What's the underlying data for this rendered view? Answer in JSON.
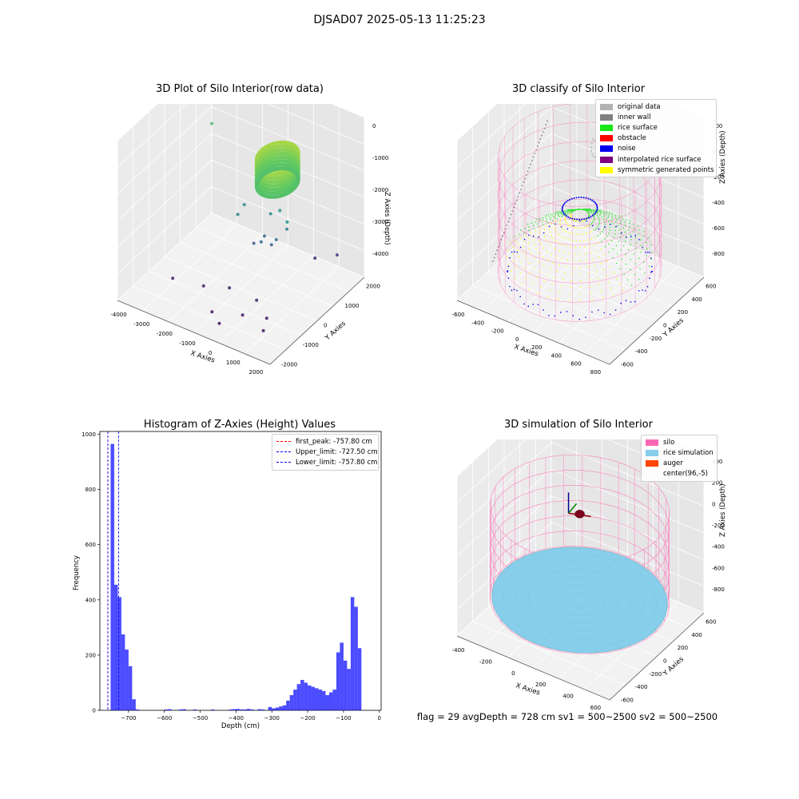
{
  "figure": {
    "suptitle": "DJSAD07 2025-05-13 11:25:23",
    "status_line": "flag = 29  avgDepth = 728 cm  sv1 = 500~2500  sv2 = 500~2500"
  },
  "chart_data": [
    {
      "id": "raw",
      "type": "scatter",
      "projection": "3d",
      "title": "3D Plot of Silo Interior(row data)",
      "xlabel": "X Axies",
      "ylabel": "Y Axies",
      "zlabel": "Z Axies (Depth)",
      "xticks": [
        "-4000",
        "-3000",
        "-2000",
        "-1000",
        "0",
        "1000",
        "2000"
      ],
      "yticks": [
        "-2000",
        "-1000",
        "0",
        "1000",
        "2000"
      ],
      "zticks": [
        "0",
        "-1000",
        "-2000",
        "-3000",
        "-4000"
      ],
      "xlim": [
        -4500,
        2300
      ],
      "ylim": [
        -2500,
        2300
      ],
      "zlim": [
        -4600,
        300
      ],
      "colormap": "viridis",
      "grid": true,
      "points": [
        {
          "x": -3800,
          "y": 1500,
          "z": -1200
        },
        {
          "x": -3000,
          "y": -1400,
          "z": -4100
        },
        {
          "x": -1800,
          "y": -1200,
          "z": -4100
        },
        {
          "x": -1000,
          "y": -800,
          "z": -4150
        },
        {
          "x": -900,
          "y": -1800,
          "z": -4300
        },
        {
          "x": -400,
          "y": -2000,
          "z": -4400
        },
        {
          "x": 200,
          "y": -1500,
          "z": -4250
        },
        {
          "x": 300,
          "y": -900,
          "z": -4100
        },
        {
          "x": 1100,
          "y": -1300,
          "z": -4200
        },
        {
          "x": 1300,
          "y": -1700,
          "z": -4300
        },
        {
          "x": 800,
          "y": 1500,
          "z": -4000
        },
        {
          "x": 1700,
          "y": 1600,
          "z": -3700
        },
        {
          "x": -1500,
          "y": 200,
          "z": -2600
        },
        {
          "x": -1300,
          "y": 300,
          "z": -2300
        },
        {
          "x": -700,
          "y": 100,
          "z": -3200
        },
        {
          "x": -400,
          "y": 300,
          "z": -3000
        },
        {
          "x": -200,
          "y": -100,
          "z": -2900
        },
        {
          "x": 0,
          "y": 200,
          "z": -3100
        },
        {
          "x": 300,
          "y": 100,
          "z": -2800
        },
        {
          "x": 600,
          "y": 300,
          "z": -2500
        },
        {
          "x": 700,
          "y": 200,
          "z": -2200
        },
        {
          "x": -800,
          "y": 400,
          "z": -1300
        },
        {
          "x": -300,
          "y": 500,
          "z": -2400
        },
        {
          "x": 200,
          "y": 400,
          "z": -2100
        },
        {
          "x": -100,
          "y": 600,
          "z": -1700
        },
        {
          "x": 500,
          "y": 500,
          "z": -1500
        }
      ],
      "ring": {
        "center_x": 180,
        "center_y": 300,
        "radius": 700,
        "depth_top": -400,
        "depth_bottom": -1200
      }
    },
    {
      "id": "classify",
      "type": "scatter",
      "projection": "3d",
      "title": "3D classify of Silo Interior",
      "xlabel": "X Axies",
      "ylabel": "Y Axies",
      "zlabel": "Z Axies (Depth)",
      "xticks": [
        "-600",
        "-400",
        "-200",
        "0",
        "200",
        "400",
        "600",
        "800"
      ],
      "yticks": [
        "-600",
        "-400",
        "-200",
        "0",
        "200",
        "400",
        "600"
      ],
      "zticks": [
        "200",
        "0",
        "-200",
        "-400",
        "-600",
        "-800"
      ],
      "xlim": [
        -700,
        900
      ],
      "ylim": [
        -700,
        700
      ],
      "zlim": [
        -950,
        300
      ],
      "grid": true,
      "legend": [
        {
          "label": "original data",
          "color": "#b3b3b3"
        },
        {
          "label": "inner wall",
          "color": "#808080"
        },
        {
          "label": "rice surface",
          "color": "#19e619"
        },
        {
          "label": "obstacle",
          "color": "#ff0000"
        },
        {
          "label": "noise",
          "color": "#0000ee"
        },
        {
          "label": "interpolated rice surface",
          "color": "#800080"
        },
        {
          "label": "symmetric generated points",
          "color": "#ffff00"
        }
      ],
      "silo": {
        "center_x": 96,
        "center_y": -5,
        "radius": 700,
        "z_top": 100,
        "z_bottom": -800,
        "color": "#ff69b4"
      },
      "surface_depth": -728
    },
    {
      "id": "histogram",
      "type": "bar",
      "title": "Histogram of Z-Axies (Height) Values",
      "xlabel": "Depth (cm)",
      "ylabel": "Frequency",
      "xticks": [
        -700,
        -600,
        -500,
        -400,
        -300,
        -200,
        -100,
        0
      ],
      "yticks": [
        0,
        200,
        400,
        600,
        800,
        1000
      ],
      "xlim": [
        -780,
        5
      ],
      "ylim": [
        0,
        1010
      ],
      "bar_color": "#0000ff",
      "bin_width": 10,
      "bin_starts": [
        -760,
        -750,
        -740,
        -730,
        -720,
        -710,
        -700,
        -690,
        -680,
        -670,
        -660,
        -650,
        -640,
        -630,
        -620,
        -610,
        -600,
        -590,
        -580,
        -570,
        -560,
        -550,
        -540,
        -530,
        -520,
        -510,
        -500,
        -490,
        -480,
        -470,
        -460,
        -450,
        -440,
        -430,
        -420,
        -410,
        -400,
        -390,
        -380,
        -370,
        -360,
        -350,
        -340,
        -330,
        -320,
        -310,
        -300,
        -290,
        -280,
        -270,
        -260,
        -250,
        -240,
        -230,
        -220,
        -210,
        -200,
        -190,
        -180,
        -170,
        -160,
        -150,
        -140,
        -130,
        -120,
        -110,
        -100,
        -90,
        -80,
        -70,
        -60,
        -50,
        -40,
        -30,
        -20,
        -10
      ],
      "values": [
        0,
        965,
        455,
        410,
        275,
        220,
        160,
        40,
        3,
        0,
        0,
        0,
        0,
        0,
        0,
        0,
        3,
        4,
        0,
        0,
        3,
        4,
        0,
        0,
        3,
        0,
        0,
        0,
        0,
        3,
        0,
        0,
        0,
        0,
        3,
        4,
        5,
        3,
        3,
        5,
        3,
        0,
        4,
        3,
        0,
        12,
        7,
        10,
        14,
        18,
        35,
        55,
        75,
        95,
        110,
        100,
        90,
        85,
        80,
        75,
        70,
        55,
        65,
        75,
        210,
        245,
        180,
        150,
        410,
        375,
        225,
        0,
        0,
        0,
        0,
        0
      ],
      "vlines": [
        {
          "label": "first_peak: -757.80 cm",
          "x": -757.8,
          "color": "#ff0000"
        },
        {
          "label": "Upper_limit: -727.50 cm",
          "x": -727.5,
          "color": "#0000ff"
        },
        {
          "label": "Lower_limit: -757.80 cm",
          "x": -757.8,
          "color": "#0000ff"
        }
      ],
      "legend_position": "top-right"
    },
    {
      "id": "simulation",
      "type": "surface",
      "projection": "3d",
      "title": "3D simulation of Silo Interior",
      "xlabel": "X Axies",
      "ylabel": "Y Axies",
      "zlabel": "Z Axies (Depth)",
      "xticks": [
        "-400",
        "-200",
        "0",
        "200",
        "400",
        "600"
      ],
      "yticks": [
        "-600",
        "-400",
        "-200",
        "0",
        "200",
        "400",
        "600"
      ],
      "zticks": [
        "400",
        "200",
        "0",
        "-200",
        "-400",
        "-600",
        "-800"
      ],
      "xlim": [
        -600,
        800
      ],
      "ylim": [
        -700,
        700
      ],
      "zlim": [
        -950,
        500
      ],
      "grid": true,
      "legend": [
        {
          "label": "silo",
          "color": "#ff69b4"
        },
        {
          "label": "rice simulation",
          "color": "#87ceeb"
        },
        {
          "label": "auger",
          "color": "#ff4500"
        },
        {
          "label": "center(96,-5)",
          "color": ""
        }
      ],
      "silo": {
        "center_x": 96,
        "center_y": -5,
        "radius": 700,
        "z_top": 100,
        "z_bottom": -728
      },
      "rice_depth": -728
    }
  ]
}
